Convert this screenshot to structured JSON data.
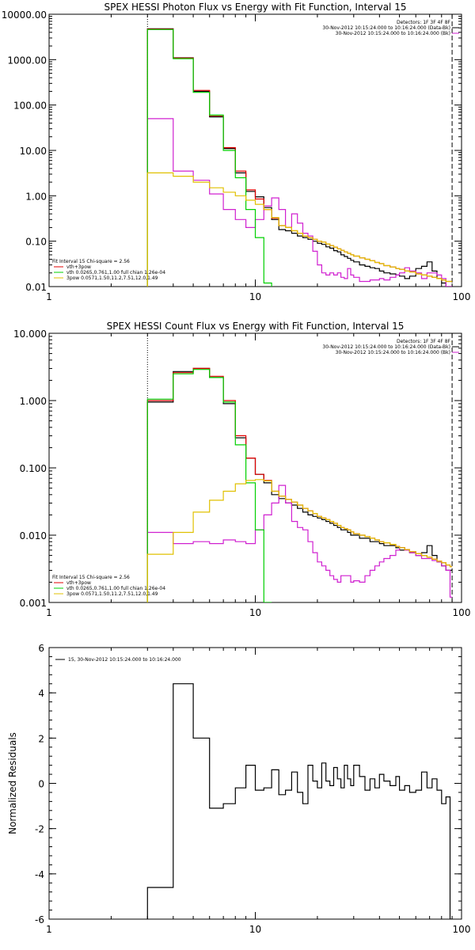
{
  "chart_data": [
    {
      "type": "line",
      "title": "SPEX HESSI Photon Flux vs Energy with Fit Function, Interval 15",
      "xlabel": "",
      "ylabel": "",
      "xscale": "log",
      "yscale": "log",
      "xlim": [
        1,
        100
      ],
      "ylim": [
        0.01,
        10000
      ],
      "x_ticks": [
        "1",
        "10",
        "100"
      ],
      "y_ticks": [
        "10000.00",
        "1000.00",
        "100.00",
        "10.00",
        "1.00",
        "0.10",
        "0.01"
      ],
      "info_lines": [
        "Detectors: 1F 3F 4F 8F",
        "30-Nov-2012 10:15:24.000 to 10:16:24.000 (Data-Bk)",
        "30-Nov-2012 10:15:24.000 to 10:16:24.000 (Bk)"
      ],
      "legend_lines": [
        "Fit Interval 15   Chi-square = 2.56",
        "vth+3pow",
        "vth 0.0265,0.761,1.00  full chian 1.26e-04",
        "3pow 0.0571,1.50,11.2,7.51,12.0,1.49"
      ],
      "edges": [
        3,
        4,
        5,
        6,
        7,
        8,
        9,
        10,
        11,
        12,
        13,
        14,
        15,
        16,
        17,
        18,
        19,
        20,
        21,
        22,
        23,
        24,
        25,
        26,
        27,
        28,
        29,
        30,
        32,
        34,
        36,
        38,
        40,
        42,
        45,
        48,
        50,
        53,
        56,
        60,
        64,
        68,
        72,
        76,
        80,
        84,
        88,
        90
      ],
      "series": [
        {
          "name": "Data-Bk",
          "color": "#000000",
          "values": [
            4800,
            1100,
            200,
            55,
            11,
            3.2,
            1.25,
            0.95,
            0.55,
            0.3,
            0.18,
            0.17,
            0.15,
            0.13,
            0.12,
            0.11,
            0.1,
            0.09,
            0.085,
            0.075,
            0.07,
            0.062,
            0.058,
            0.05,
            0.046,
            0.042,
            0.038,
            0.035,
            0.03,
            0.028,
            0.026,
            0.025,
            0.022,
            0.02,
            0.019,
            0.018,
            0.017,
            0.015,
            0.017,
            0.025,
            0.028,
            0.035,
            0.022,
            0.015,
            0.012,
            0.01,
            0.01
          ]
        },
        {
          "name": "Bk",
          "color": "#d020d0",
          "values": [
            50,
            3.5,
            2.2,
            1.1,
            0.5,
            0.3,
            0.2,
            0.3,
            0.6,
            0.9,
            0.5,
            0.2,
            0.4,
            0.25,
            0.15,
            0.13,
            0.06,
            0.03,
            0.02,
            0.018,
            0.02,
            0.018,
            0.02,
            0.016,
            0.015,
            0.025,
            0.018,
            0.016,
            0.013,
            0.013,
            0.014,
            0.014,
            0.015,
            0.014,
            0.016,
            0.018,
            0.02,
            0.026,
            0.022,
            0.02,
            0.015,
            0.02,
            0.02,
            0.018,
            0.015,
            0.01,
            0.01
          ]
        },
        {
          "name": "vth+3pow",
          "color": "#e00000",
          "values": [
            4700,
            1080,
            210,
            58,
            11.5,
            3.5,
            1.35,
            0.85,
            0.5,
            0.32,
            0.22,
            0.2,
            0.17,
            0.15,
            0.13,
            0.12,
            0.11,
            0.1,
            0.095,
            0.087,
            0.08,
            0.074,
            0.068,
            0.063,
            0.058,
            0.054,
            0.05,
            0.047,
            0.043,
            0.04,
            0.037,
            0.034,
            0.032,
            0.029,
            0.027,
            0.025,
            0.024,
            0.022,
            0.021,
            0.019,
            0.018,
            0.017,
            0.016,
            0.015,
            0.014,
            0.013,
            0.013
          ]
        },
        {
          "name": "vth",
          "color": "#00d000",
          "values": [
            4600,
            1050,
            190,
            60,
            10,
            2.5,
            0.5,
            0.12,
            0.012
          ]
        },
        {
          "name": "3pow",
          "color": "#e0c000",
          "values": [
            3.2,
            2.7,
            2.0,
            1.5,
            1.2,
            1.0,
            0.8,
            0.65,
            0.5,
            0.33,
            0.22,
            0.2,
            0.17,
            0.15,
            0.13,
            0.12,
            0.11,
            0.1,
            0.095,
            0.087,
            0.08,
            0.074,
            0.068,
            0.063,
            0.058,
            0.054,
            0.05,
            0.047,
            0.043,
            0.04,
            0.037,
            0.034,
            0.032,
            0.029,
            0.027,
            0.025,
            0.024,
            0.022,
            0.021,
            0.019,
            0.018,
            0.017,
            0.016,
            0.015,
            0.014,
            0.013,
            0.013
          ]
        }
      ]
    },
    {
      "type": "line",
      "title": "SPEX HESSI Count Flux vs Energy with Fit Function, Interval 15",
      "xlabel": "",
      "ylabel": "",
      "xscale": "log",
      "yscale": "log",
      "xlim": [
        1,
        100
      ],
      "ylim": [
        0.001,
        10
      ],
      "x_ticks": [
        "1",
        "10",
        "100"
      ],
      "y_ticks": [
        "10.000",
        "1.000",
        "0.100",
        "0.010",
        "0.001"
      ],
      "info_lines": [
        "Detectors: 1F 3F 4F 8F",
        "30-Nov-2012 10:15:24.000 to 10:16:24.000 (Data-Bk)",
        "30-Nov-2012 10:15:24.000 to 10:16:24.000 (Bk)"
      ],
      "legend_lines": [
        "Fit Interval 15   Chi-square = 2.56",
        "vth+3pow",
        "vth 0.0265,0.761,1.00  full chian 1.26e-04",
        "3pow 0.0571,1.50,11.2,7.51,12.0,1.49"
      ],
      "edges": [
        3,
        4,
        5,
        6,
        7,
        8,
        9,
        10,
        11,
        12,
        13,
        14,
        15,
        16,
        17,
        18,
        19,
        20,
        21,
        22,
        23,
        24,
        25,
        26,
        27,
        28,
        29,
        30,
        32,
        34,
        36,
        38,
        40,
        42,
        45,
        48,
        50,
        53,
        56,
        60,
        64,
        68,
        72,
        76,
        80,
        84,
        88,
        90
      ],
      "series": [
        {
          "name": "Data-Bk",
          "color": "#000000",
          "values": [
            0.95,
            2.7,
            3.0,
            2.2,
            0.9,
            0.28,
            0.14,
            0.08,
            0.06,
            0.04,
            0.035,
            0.03,
            0.028,
            0.025,
            0.022,
            0.02,
            0.019,
            0.018,
            0.017,
            0.016,
            0.015,
            0.014,
            0.013,
            0.012,
            0.012,
            0.011,
            0.01,
            0.01,
            0.009,
            0.009,
            0.008,
            0.008,
            0.0075,
            0.007,
            0.007,
            0.0065,
            0.006,
            0.006,
            0.0055,
            0.005,
            0.0055,
            0.007,
            0.005,
            0.004,
            0.0035,
            0.003,
            0.003
          ]
        },
        {
          "name": "Bk",
          "color": "#d020d0",
          "values": [
            0.011,
            0.0075,
            0.008,
            0.0075,
            0.0085,
            0.008,
            0.0075,
            0.012,
            0.02,
            0.03,
            0.055,
            0.03,
            0.016,
            0.013,
            0.012,
            0.008,
            0.0055,
            0.004,
            0.0035,
            0.003,
            0.0025,
            0.0022,
            0.002,
            0.0025,
            0.0025,
            0.0025,
            0.002,
            0.0021,
            0.002,
            0.0025,
            0.003,
            0.0035,
            0.004,
            0.0045,
            0.005,
            0.006,
            0.0065,
            0.006,
            0.0055,
            0.005,
            0.0045,
            0.0045,
            0.0042,
            0.004,
            0.0035,
            0.003,
            0.0012
          ]
        },
        {
          "name": "vth+3pow",
          "color": "#e00000",
          "values": [
            1.0,
            2.6,
            3.0,
            2.3,
            1.0,
            0.3,
            0.14,
            0.08,
            0.065,
            0.045,
            0.038,
            0.034,
            0.031,
            0.028,
            0.025,
            0.023,
            0.021,
            0.019,
            0.018,
            0.017,
            0.016,
            0.015,
            0.014,
            0.013,
            0.0125,
            0.012,
            0.0112,
            0.0105,
            0.01,
            0.0095,
            0.009,
            0.0085,
            0.008,
            0.0077,
            0.0073,
            0.0068,
            0.0065,
            0.0061,
            0.0057,
            0.0053,
            0.005,
            0.0047,
            0.0044,
            0.0041,
            0.0039,
            0.0036,
            0.0034
          ]
        },
        {
          "name": "vth",
          "color": "#00d000",
          "values": [
            1.05,
            2.5,
            2.9,
            2.2,
            0.95,
            0.22,
            0.06,
            0.012,
            0.001
          ]
        },
        {
          "name": "3pow",
          "color": "#e0c000",
          "values": [
            0.0052,
            0.011,
            0.022,
            0.033,
            0.045,
            0.058,
            0.065,
            0.067,
            0.064,
            0.045,
            0.038,
            0.034,
            0.031,
            0.028,
            0.025,
            0.023,
            0.021,
            0.019,
            0.018,
            0.017,
            0.016,
            0.015,
            0.014,
            0.013,
            0.0125,
            0.012,
            0.0112,
            0.0105,
            0.01,
            0.0095,
            0.009,
            0.0085,
            0.008,
            0.0077,
            0.0073,
            0.0068,
            0.0065,
            0.0061,
            0.0057,
            0.0053,
            0.005,
            0.0047,
            0.0044,
            0.0041,
            0.0039,
            0.0036,
            0.0034
          ]
        }
      ]
    },
    {
      "type": "line",
      "title": "",
      "xlabel": "",
      "ylabel": "Normalized Residuals",
      "xscale": "log",
      "yscale": "linear",
      "xlim": [
        1,
        100
      ],
      "ylim": [
        -6,
        6
      ],
      "x_ticks": [
        "1",
        "10",
        "100"
      ],
      "y_ticks": [
        "6",
        "4",
        "2",
        "0",
        "-2",
        "-4",
        "-6"
      ],
      "legend_lines": [
        "15, 30-Nov-2012 10:15:24.000 to 10:16:24.000"
      ],
      "edges": [
        3,
        4,
        5,
        6,
        7,
        8,
        9,
        10,
        11,
        12,
        13,
        14,
        15,
        16,
        17,
        18,
        19,
        20,
        21,
        22,
        23,
        24,
        25,
        26,
        27,
        28,
        29,
        30,
        32,
        34,
        36,
        38,
        40,
        42,
        45,
        48,
        50,
        53,
        56,
        60,
        64,
        68,
        72,
        76,
        80,
        84,
        88,
        90
      ],
      "series": [
        {
          "name": "15, 30-Nov-2012 10:15:24.000 to 10:16:24.000",
          "color": "#000000",
          "values": [
            -4.6,
            4.4,
            2.0,
            -1.1,
            -0.9,
            -0.2,
            0.8,
            -0.3,
            -0.2,
            0.6,
            -0.5,
            -0.3,
            0.5,
            -0.4,
            -0.9,
            0.8,
            0.1,
            -0.2,
            0.9,
            0.1,
            -0.1,
            0.7,
            0.2,
            -0.2,
            0.8,
            0.2,
            -0.1,
            0.8,
            0.3,
            -0.3,
            0.2,
            -0.2,
            0.4,
            0.1,
            -0.1,
            0.3,
            -0.3,
            -0.1,
            -0.4,
            -0.3,
            0.5,
            -0.2,
            0.2,
            -0.3,
            -0.9,
            -0.6,
            -6.0
          ]
        }
      ]
    }
  ]
}
